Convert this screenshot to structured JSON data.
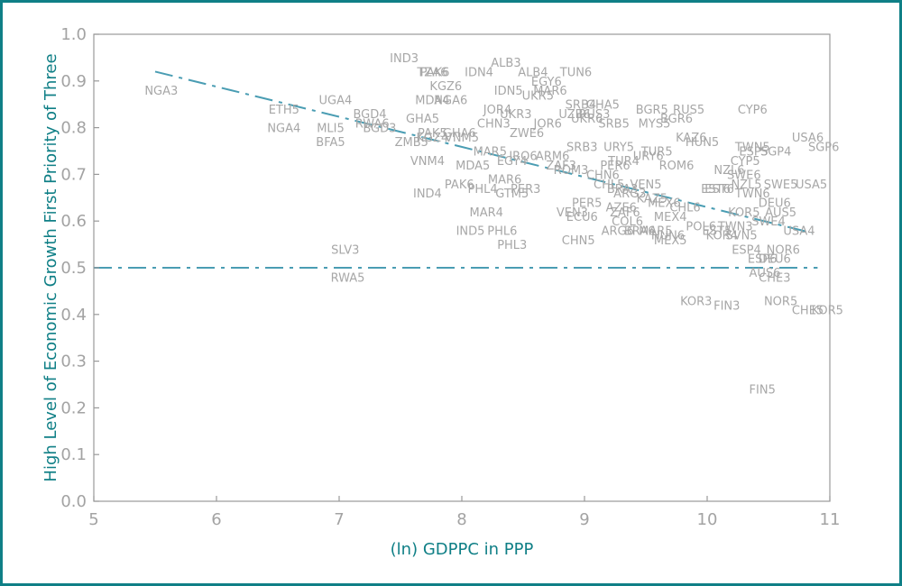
{
  "chart_data": {
    "type": "scatter",
    "title": "",
    "xlabel": "(ln) GDPPC in PPP",
    "ylabel": "High Level of Economic Growth First Priority of Three",
    "xlim": [
      5,
      11
    ],
    "ylim": [
      0,
      1
    ],
    "xticks": [
      "5",
      "6",
      "7",
      "8",
      "9",
      "10",
      "11"
    ],
    "yticks": [
      "0.0",
      "0.1",
      "0.2",
      "0.3",
      "0.4",
      "0.5",
      "0.6",
      "0.7",
      "0.8",
      "0.9",
      "1.0"
    ],
    "grid": false,
    "frame_color": "#0f7f86",
    "axis_color": "#999999",
    "line_color": "#4a9db3",
    "label_color": "#a7a7a7",
    "fit_line": {
      "x": [
        5.5,
        10.85
      ],
      "y": [
        0.92,
        0.575
      ],
      "style": "dash-dot"
    },
    "reference_line": {
      "x": [
        5.0,
        10.9
      ],
      "y": [
        0.5,
        0.5
      ],
      "style": "dash-dot"
    },
    "points": [
      {
        "label": "NGA3",
        "x": 5.55,
        "y": 0.88
      },
      {
        "label": "ETH5",
        "x": 6.55,
        "y": 0.84
      },
      {
        "label": "NGA4",
        "x": 6.55,
        "y": 0.8
      },
      {
        "label": "UGA4",
        "x": 6.97,
        "y": 0.86
      },
      {
        "label": "BGD4",
        "x": 7.25,
        "y": 0.83
      },
      {
        "label": "MLI5",
        "x": 6.93,
        "y": 0.8
      },
      {
        "label": "RWA6",
        "x": 7.27,
        "y": 0.81
      },
      {
        "label": "BGD3",
        "x": 7.33,
        "y": 0.8
      },
      {
        "label": "BFA5",
        "x": 6.93,
        "y": 0.77
      },
      {
        "label": "IND3",
        "x": 7.53,
        "y": 0.95
      },
      {
        "label": "PAK6",
        "x": 7.78,
        "y": 0.92
      },
      {
        "label": "TZA6",
        "x": 7.76,
        "y": 0.92
      },
      {
        "label": "KGZ6",
        "x": 7.87,
        "y": 0.89
      },
      {
        "label": "MDA4",
        "x": 7.76,
        "y": 0.86
      },
      {
        "label": "NGA6",
        "x": 7.91,
        "y": 0.86
      },
      {
        "label": "GHA5",
        "x": 7.68,
        "y": 0.82
      },
      {
        "label": "PAK5",
        "x": 7.76,
        "y": 0.79
      },
      {
        "label": "GHA6",
        "x": 7.98,
        "y": 0.79
      },
      {
        "label": "ZMB5",
        "x": 7.59,
        "y": 0.77
      },
      {
        "label": "KGZ4",
        "x": 7.76,
        "y": 0.78
      },
      {
        "label": "VNM5",
        "x": 8.0,
        "y": 0.78
      },
      {
        "label": "VNM4",
        "x": 7.72,
        "y": 0.73
      },
      {
        "label": "IND4",
        "x": 7.72,
        "y": 0.66
      },
      {
        "label": "ALB3",
        "x": 8.36,
        "y": 0.94
      },
      {
        "label": "IDN4",
        "x": 8.14,
        "y": 0.92
      },
      {
        "label": "ALB4",
        "x": 8.58,
        "y": 0.92
      },
      {
        "label": "TUN6",
        "x": 8.93,
        "y": 0.92
      },
      {
        "label": "EGY6",
        "x": 8.69,
        "y": 0.9
      },
      {
        "label": "IDN5",
        "x": 8.38,
        "y": 0.88
      },
      {
        "label": "UKR5",
        "x": 8.62,
        "y": 0.87
      },
      {
        "label": "MAR6",
        "x": 8.72,
        "y": 0.88
      },
      {
        "label": "JOR4",
        "x": 8.29,
        "y": 0.84
      },
      {
        "label": "UKR3",
        "x": 8.44,
        "y": 0.83
      },
      {
        "label": "CHN3",
        "x": 8.26,
        "y": 0.81
      },
      {
        "label": "JOR6",
        "x": 8.7,
        "y": 0.81
      },
      {
        "label": "ZWE6",
        "x": 8.53,
        "y": 0.79
      },
      {
        "label": "MAR5",
        "x": 8.23,
        "y": 0.75
      },
      {
        "label": "MDA5",
        "x": 8.09,
        "y": 0.72
      },
      {
        "label": "EGY4",
        "x": 8.41,
        "y": 0.73
      },
      {
        "label": "IRQ6",
        "x": 8.5,
        "y": 0.74
      },
      {
        "label": "ARM6",
        "x": 8.74,
        "y": 0.74
      },
      {
        "label": "SRB3",
        "x": 8.98,
        "y": 0.76
      },
      {
        "label": "PAK6",
        "x": 7.98,
        "y": 0.68
      },
      {
        "label": "PHL4",
        "x": 8.17,
        "y": 0.67
      },
      {
        "label": "MAR6",
        "x": 8.35,
        "y": 0.69
      },
      {
        "label": "ZAF3",
        "x": 8.81,
        "y": 0.72
      },
      {
        "label": "ROM3",
        "x": 8.89,
        "y": 0.71
      },
      {
        "label": "CHN6",
        "x": 9.15,
        "y": 0.7
      },
      {
        "label": "MAR4",
        "x": 8.2,
        "y": 0.62
      },
      {
        "label": "GTM5",
        "x": 8.41,
        "y": 0.66
      },
      {
        "label": "PER3",
        "x": 8.52,
        "y": 0.67
      },
      {
        "label": "VEN3",
        "x": 8.9,
        "y": 0.62
      },
      {
        "label": "ECU6",
        "x": 8.98,
        "y": 0.61
      },
      {
        "label": "PER5",
        "x": 9.02,
        "y": 0.64
      },
      {
        "label": "ZAF6",
        "x": 9.33,
        "y": 0.62
      },
      {
        "label": "SRB4",
        "x": 8.97,
        "y": 0.85
      },
      {
        "label": "GHA5",
        "x": 9.15,
        "y": 0.85
      },
      {
        "label": "UZB6",
        "x": 8.92,
        "y": 0.83
      },
      {
        "label": "RUS3",
        "x": 9.08,
        "y": 0.83
      },
      {
        "label": "UKR6",
        "x": 9.02,
        "y": 0.82
      },
      {
        "label": "SRB5",
        "x": 9.24,
        "y": 0.81
      },
      {
        "label": "BGR5",
        "x": 9.55,
        "y": 0.84
      },
      {
        "label": "RUS5",
        "x": 9.85,
        "y": 0.84
      },
      {
        "label": "MYS5",
        "x": 9.57,
        "y": 0.81
      },
      {
        "label": "BGR6",
        "x": 9.75,
        "y": 0.82
      },
      {
        "label": "KAZ6",
        "x": 9.87,
        "y": 0.78
      },
      {
        "label": "HUN5",
        "x": 9.96,
        "y": 0.77
      },
      {
        "label": "URY5",
        "x": 9.28,
        "y": 0.76
      },
      {
        "label": "TUR5",
        "x": 9.59,
        "y": 0.75
      },
      {
        "label": "TUR4",
        "x": 9.32,
        "y": 0.73
      },
      {
        "label": "URY6",
        "x": 9.52,
        "y": 0.74
      },
      {
        "label": "PER6",
        "x": 9.25,
        "y": 0.72
      },
      {
        "label": "ROM6",
        "x": 9.75,
        "y": 0.72
      },
      {
        "label": "CHL5",
        "x": 9.2,
        "y": 0.68
      },
      {
        "label": "BRA3",
        "x": 9.31,
        "y": 0.67
      },
      {
        "label": "ARG3",
        "x": 9.37,
        "y": 0.66
      },
      {
        "label": "VEN5",
        "x": 9.5,
        "y": 0.68
      },
      {
        "label": "EST6",
        "x": 10.07,
        "y": 0.67
      },
      {
        "label": "AZE6",
        "x": 9.3,
        "y": 0.63
      },
      {
        "label": "KAZ5",
        "x": 9.55,
        "y": 0.65
      },
      {
        "label": "MEX6",
        "x": 9.65,
        "y": 0.64
      },
      {
        "label": "CHL6",
        "x": 9.82,
        "y": 0.63
      },
      {
        "label": "MEX4",
        "x": 9.7,
        "y": 0.61
      },
      {
        "label": "COL6",
        "x": 9.35,
        "y": 0.6
      },
      {
        "label": "ARG6",
        "x": 9.27,
        "y": 0.58
      },
      {
        "label": "BRA6",
        "x": 9.45,
        "y": 0.58
      },
      {
        "label": "MAR5",
        "x": 9.58,
        "y": 0.58
      },
      {
        "label": "HUN6",
        "x": 9.68,
        "y": 0.57
      },
      {
        "label": "MEX5",
        "x": 9.7,
        "y": 0.56
      },
      {
        "label": "POL6",
        "x": 9.95,
        "y": 0.59
      },
      {
        "label": "EST5",
        "x": 10.08,
        "y": 0.58
      },
      {
        "label": "CHN5",
        "x": 8.95,
        "y": 0.56
      },
      {
        "label": "IND5",
        "x": 8.07,
        "y": 0.58
      },
      {
        "label": "PHL6",
        "x": 8.33,
        "y": 0.58
      },
      {
        "label": "PHL3",
        "x": 8.41,
        "y": 0.55
      },
      {
        "label": "SLV3",
        "x": 7.05,
        "y": 0.54
      },
      {
        "label": "RWA5",
        "x": 7.07,
        "y": 0.48
      },
      {
        "label": "CYP6",
        "x": 10.37,
        "y": 0.84
      },
      {
        "label": "USA6",
        "x": 10.82,
        "y": 0.78
      },
      {
        "label": "SGP6",
        "x": 10.95,
        "y": 0.76
      },
      {
        "label": "TWN5",
        "x": 10.37,
        "y": 0.76
      },
      {
        "label": "ESP5",
        "x": 10.38,
        "y": 0.75
      },
      {
        "label": "SGP4",
        "x": 10.56,
        "y": 0.75
      },
      {
        "label": "CYP5",
        "x": 10.31,
        "y": 0.73
      },
      {
        "label": "NZL6",
        "x": 10.18,
        "y": 0.71
      },
      {
        "label": "SWE6",
        "x": 10.3,
        "y": 0.7
      },
      {
        "label": "NZL5",
        "x": 10.32,
        "y": 0.68
      },
      {
        "label": "SWE5",
        "x": 10.6,
        "y": 0.68
      },
      {
        "label": "USA5",
        "x": 10.85,
        "y": 0.68
      },
      {
        "label": "EST6",
        "x": 10.1,
        "y": 0.67
      },
      {
        "label": "TWN6",
        "x": 10.37,
        "y": 0.66
      },
      {
        "label": "DEU6",
        "x": 10.55,
        "y": 0.64
      },
      {
        "label": "KOR5",
        "x": 10.3,
        "y": 0.62
      },
      {
        "label": "AUS5",
        "x": 10.6,
        "y": 0.62
      },
      {
        "label": "SWE4",
        "x": 10.5,
        "y": 0.6
      },
      {
        "label": "TWN3",
        "x": 10.23,
        "y": 0.59
      },
      {
        "label": "USA4",
        "x": 10.75,
        "y": 0.58
      },
      {
        "label": "SVN5",
        "x": 10.28,
        "y": 0.57
      },
      {
        "label": "KOR4",
        "x": 10.12,
        "y": 0.57
      },
      {
        "label": "ESP4",
        "x": 10.32,
        "y": 0.54
      },
      {
        "label": "NOR6",
        "x": 10.62,
        "y": 0.54
      },
      {
        "label": "ESP6",
        "x": 10.45,
        "y": 0.52
      },
      {
        "label": "DEU6",
        "x": 10.55,
        "y": 0.52
      },
      {
        "label": "AUS6",
        "x": 10.47,
        "y": 0.49
      },
      {
        "label": "CHE3",
        "x": 10.55,
        "y": 0.48
      },
      {
        "label": "KOR3",
        "x": 9.91,
        "y": 0.43
      },
      {
        "label": "FIN3",
        "x": 10.16,
        "y": 0.42
      },
      {
        "label": "NOR5",
        "x": 10.6,
        "y": 0.43
      },
      {
        "label": "CHE5",
        "x": 10.82,
        "y": 0.41
      },
      {
        "label": "KOR5",
        "x": 10.98,
        "y": 0.41
      },
      {
        "label": "FIN5",
        "x": 10.45,
        "y": 0.24
      }
    ]
  }
}
